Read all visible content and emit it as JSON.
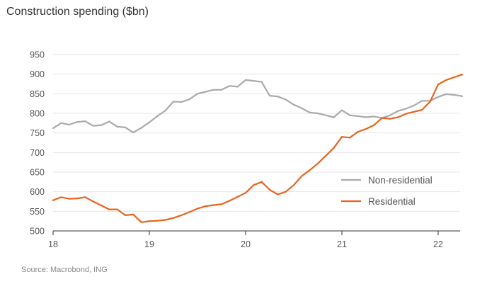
{
  "chart_data": {
    "type": "line",
    "title": "Construction spending ($bn)",
    "xlabel": "",
    "ylabel": "",
    "source": "Source: Macrobond, ING",
    "ylim": [
      500,
      950
    ],
    "yticks": [
      500,
      550,
      600,
      650,
      700,
      750,
      800,
      850,
      900,
      950
    ],
    "xticks": [
      {
        "label": "18",
        "value": 2018.0
      },
      {
        "label": "19",
        "value": 2019.0
      },
      {
        "label": "20",
        "value": 2020.0
      },
      {
        "label": "21",
        "value": 2021.0
      },
      {
        "label": "22",
        "value": 2022.0
      }
    ],
    "xlim": [
      2018.0,
      2022.3
    ],
    "legend_position": "center-right",
    "series": [
      {
        "name": "Non-residential",
        "color": "#aaaaaa",
        "x": [
          2018.0,
          2018.083,
          2018.167,
          2018.25,
          2018.333,
          2018.417,
          2018.5,
          2018.583,
          2018.667,
          2018.75,
          2018.833,
          2018.917,
          2019.0,
          2019.083,
          2019.167,
          2019.25,
          2019.333,
          2019.417,
          2019.5,
          2019.583,
          2019.667,
          2019.75,
          2019.833,
          2019.917,
          2020.0,
          2020.083,
          2020.167,
          2020.25,
          2020.333,
          2020.417,
          2020.5,
          2020.583,
          2020.667,
          2020.75,
          2020.833,
          2020.917,
          2021.0,
          2021.083,
          2021.167,
          2021.25,
          2021.333,
          2021.417,
          2021.5,
          2021.583,
          2021.667,
          2021.75,
          2021.833,
          2021.917,
          2022.0,
          2022.083,
          2022.167,
          2022.25
        ],
        "values": [
          762,
          775,
          771,
          778,
          780,
          768,
          770,
          779,
          766,
          764,
          751,
          763,
          777,
          793,
          807,
          830,
          829,
          836,
          850,
          855,
          860,
          860,
          870,
          868,
          885,
          883,
          880,
          845,
          843,
          835,
          822,
          813,
          802,
          800,
          795,
          790,
          808,
          795,
          793,
          790,
          792,
          788,
          795,
          806,
          812,
          820,
          832,
          832,
          842,
          849,
          847,
          844
        ]
      },
      {
        "name": "Residential",
        "color": "#e8641e",
        "x": [
          2018.0,
          2018.083,
          2018.167,
          2018.25,
          2018.333,
          2018.417,
          2018.5,
          2018.583,
          2018.667,
          2018.75,
          2018.833,
          2018.917,
          2019.0,
          2019.083,
          2019.167,
          2019.25,
          2019.333,
          2019.417,
          2019.5,
          2019.583,
          2019.667,
          2019.75,
          2019.833,
          2019.917,
          2020.0,
          2020.083,
          2020.167,
          2020.25,
          2020.333,
          2020.417,
          2020.5,
          2020.583,
          2020.667,
          2020.75,
          2020.833,
          2020.917,
          2021.0,
          2021.083,
          2021.167,
          2021.25,
          2021.333,
          2021.417,
          2021.5,
          2021.583,
          2021.667,
          2021.75,
          2021.833,
          2021.917,
          2022.0,
          2022.083,
          2022.167,
          2022.25
        ],
        "values": [
          578,
          586,
          582,
          583,
          586,
          575,
          565,
          555,
          555,
          540,
          542,
          522,
          525,
          526,
          528,
          533,
          540,
          548,
          557,
          563,
          566,
          568,
          577,
          587,
          597,
          617,
          625,
          605,
          593,
          600,
          617,
          640,
          655,
          672,
          692,
          712,
          740,
          738,
          753,
          760,
          770,
          788,
          786,
          790,
          799,
          804,
          809,
          830,
          874,
          885,
          892,
          899
        ]
      }
    ]
  }
}
